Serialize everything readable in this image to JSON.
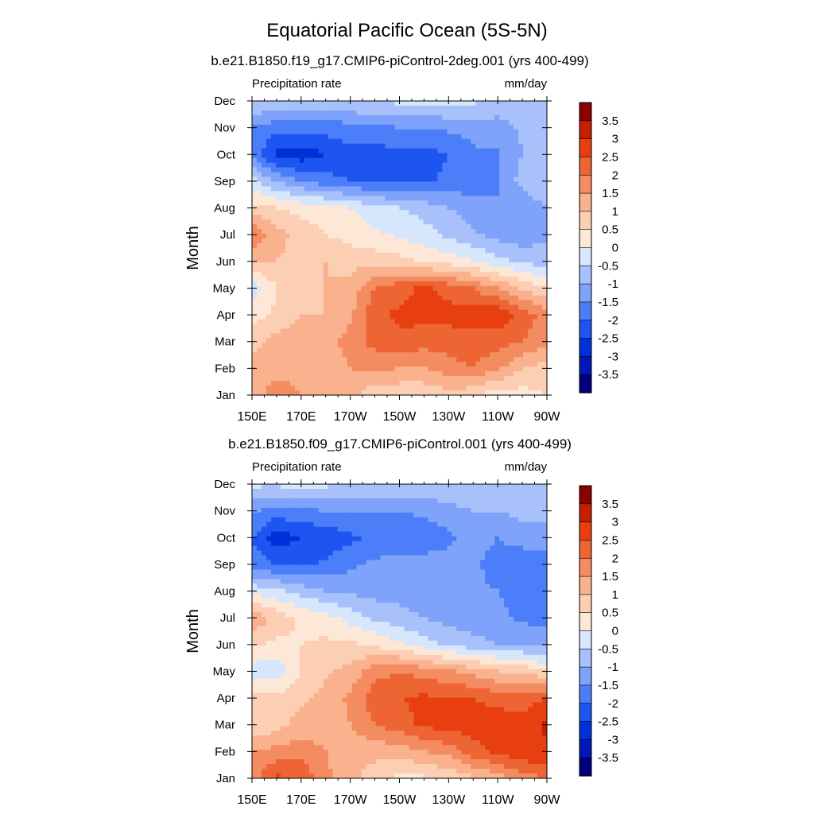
{
  "main_title": "Equatorial Pacific Ocean (5S-5N)",
  "chart_data": [
    {
      "type": "heatmap",
      "title": "b.e21.B1850.f19_g17.CMIP6-piControl-2deg.001 (yrs 400-499)",
      "left_label": "Precipitation rate",
      "right_label": "mm/day",
      "ylabel": "Month",
      "xlabel": "",
      "x_tick_labels": [
        "150E",
        "170E",
        "170W",
        "150W",
        "130W",
        "110W",
        "90W"
      ],
      "x_tick_lons": [
        150,
        170,
        190,
        210,
        230,
        250,
        270
      ],
      "xlim": [
        150,
        270
      ],
      "y_tick_labels": [
        "Jan",
        "Feb",
        "Mar",
        "Apr",
        "May",
        "Jun",
        "Jul",
        "Aug",
        "Sep",
        "Oct",
        "Nov",
        "Dec"
      ],
      "x": [
        150,
        160,
        170,
        180,
        190,
        200,
        210,
        220,
        230,
        240,
        250,
        260,
        270
      ],
      "z": [
        [
          1.0,
          2.0,
          1.5,
          1.5,
          1.2,
          0.6,
          0.6,
          0.6,
          0.8,
          0.6,
          0.2,
          0.3,
          0.5
        ],
        [
          1.2,
          1.2,
          1.2,
          1.2,
          1.5,
          1.6,
          1.5,
          1.5,
          1.8,
          2.0,
          1.6,
          1.0,
          0.8
        ],
        [
          0.8,
          1.2,
          1.2,
          1.3,
          1.7,
          2.2,
          2.4,
          2.2,
          2.2,
          2.3,
          2.2,
          2.0,
          1.6
        ],
        [
          0.3,
          0.6,
          1.0,
          1.0,
          1.4,
          2.4,
          2.6,
          2.7,
          2.7,
          2.8,
          2.9,
          2.3,
          1.8
        ],
        [
          -0.3,
          0.5,
          0.5,
          1.0,
          1.2,
          2.0,
          2.3,
          2.6,
          2.3,
          2.0,
          1.5,
          0.9,
          0.5
        ],
        [
          1.0,
          1.0,
          0.8,
          1.0,
          0.8,
          0.8,
          0.7,
          0.4,
          0.3,
          0.0,
          -0.3,
          -0.6,
          -0.8
        ],
        [
          2.0,
          1.2,
          0.8,
          0.5,
          0.3,
          0.1,
          -0.1,
          -0.3,
          -0.6,
          -0.9,
          -1.2,
          -1.3,
          -1.1
        ],
        [
          0.7,
          0.5,
          0.3,
          0.2,
          0.0,
          -0.3,
          -0.5,
          -0.7,
          -1.0,
          -1.3,
          -1.5,
          -1.4,
          -1.0
        ],
        [
          -0.3,
          -1.0,
          -1.5,
          -1.8,
          -2.0,
          -2.1,
          -2.1,
          -2.1,
          -1.9,
          -1.7,
          -1.5,
          -0.8,
          -0.5
        ],
        [
          -1.6,
          -2.7,
          -2.8,
          -2.5,
          -2.2,
          -2.2,
          -2.2,
          -2.2,
          -2.0,
          -1.6,
          -1.6,
          -1.0,
          -1.0
        ],
        [
          -1.6,
          -1.8,
          -1.8,
          -1.8,
          -1.7,
          -1.6,
          -1.5,
          -1.5,
          -1.4,
          -1.3,
          -1.2,
          -0.9,
          -0.7
        ],
        [
          -0.4,
          -0.5,
          -0.6,
          -0.6,
          -0.5,
          -0.4,
          -0.4,
          -0.4,
          -0.3,
          -0.4,
          -0.7,
          -0.8,
          -0.9
        ]
      ],
      "colorbar_labels": [
        "3.5",
        "3",
        "2.5",
        "2",
        "1.5",
        "1",
        "0.5",
        "0",
        "-0.5",
        "-1",
        "-1.5",
        "-2",
        "-2.5",
        "-3",
        "-3.5"
      ],
      "colorbar_units": "mm/day"
    },
    {
      "type": "heatmap",
      "title": "b.e21.B1850.f09_g17.CMIP6-piControl.001 (yrs 400-499)",
      "left_label": "Precipitation rate",
      "right_label": "mm/day",
      "ylabel": "Month",
      "xlabel": "",
      "x_tick_labels": [
        "150E",
        "170E",
        "170W",
        "150W",
        "130W",
        "110W",
        "90W"
      ],
      "x_tick_lons": [
        150,
        170,
        190,
        210,
        230,
        250,
        270
      ],
      "xlim": [
        150,
        270
      ],
      "y_tick_labels": [
        "Jan",
        "Feb",
        "Mar",
        "Apr",
        "May",
        "Jun",
        "Jul",
        "Aug",
        "Sep",
        "Oct",
        "Nov",
        "Dec"
      ],
      "x": [
        150,
        160,
        170,
        180,
        190,
        200,
        210,
        220,
        230,
        240,
        250,
        260,
        270
      ],
      "z": [
        [
          1.8,
          2.6,
          2.4,
          1.6,
          1.2,
          0.7,
          0.4,
          0.4,
          0.6,
          0.9,
          1.2,
          1.8,
          2.0
        ],
        [
          1.5,
          1.7,
          1.8,
          1.5,
          1.2,
          1.2,
          1.2,
          1.5,
          1.7,
          2.3,
          2.7,
          2.9,
          2.9
        ],
        [
          0.5,
          0.8,
          1.2,
          1.2,
          1.5,
          2.0,
          2.3,
          2.6,
          2.7,
          2.7,
          2.8,
          2.8,
          3.1
        ],
        [
          0.6,
          0.6,
          0.9,
          1.2,
          1.6,
          2.3,
          2.5,
          2.6,
          2.5,
          2.5,
          2.3,
          2.2,
          2.5
        ],
        [
          -0.3,
          -0.3,
          0.5,
          0.9,
          1.2,
          1.8,
          2.0,
          1.8,
          1.6,
          1.3,
          1.0,
          0.9,
          0.5
        ],
        [
          0.6,
          0.4,
          0.5,
          0.6,
          0.6,
          0.4,
          0.1,
          -0.3,
          -0.6,
          -0.8,
          -1.0,
          -1.1,
          -1.2
        ],
        [
          1.5,
          0.8,
          0.4,
          0.2,
          -0.2,
          -0.6,
          -0.8,
          -1.0,
          -1.2,
          -1.3,
          -1.4,
          -1.6,
          -1.7
        ],
        [
          -0.2,
          -0.4,
          -0.7,
          -1.0,
          -1.1,
          -1.2,
          -1.2,
          -1.3,
          -1.3,
          -1.4,
          -1.5,
          -1.6,
          -1.5
        ],
        [
          -1.7,
          -2.0,
          -2.1,
          -1.9,
          -1.6,
          -1.4,
          -1.3,
          -1.3,
          -1.3,
          -1.4,
          -1.7,
          -1.8,
          -1.7
        ],
        [
          -2.0,
          -2.8,
          -2.5,
          -2.4,
          -2.1,
          -1.9,
          -1.8,
          -1.8,
          -1.6,
          -1.3,
          -1.5,
          -1.3,
          -1.3
        ],
        [
          -1.4,
          -1.7,
          -1.6,
          -1.5,
          -1.4,
          -1.5,
          -1.5,
          -1.4,
          -1.2,
          -1.0,
          -1.0,
          -0.8,
          -0.8
        ],
        [
          -0.4,
          -0.4,
          -0.3,
          -0.4,
          -0.5,
          -0.6,
          -0.6,
          -0.6,
          -0.5,
          -0.5,
          -0.5,
          -0.5,
          -0.5
        ]
      ],
      "colorbar_labels": [
        "3.5",
        "3",
        "2.5",
        "2",
        "1.5",
        "1",
        "0.5",
        "0",
        "-0.5",
        "-1",
        "-1.5",
        "-2",
        "-2.5",
        "-3",
        "-3.5"
      ],
      "colorbar_units": "mm/day"
    }
  ],
  "colors": {
    "palette": [
      "#00007f",
      "#0018b5",
      "#0030d8",
      "#1e55f0",
      "#4b7ef8",
      "#7fa2fa",
      "#a8c1fb",
      "#d6e6fd",
      "#fde8d8",
      "#fccfb4",
      "#fab18d",
      "#f48c61",
      "#ee6534",
      "#e83f10",
      "#c41f00",
      "#8b0000"
    ],
    "axis": "#000000"
  }
}
